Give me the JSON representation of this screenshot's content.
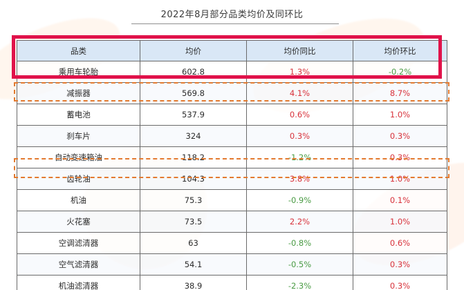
{
  "title": "2022年8月部分品类均价及同环比",
  "colors": {
    "header_bg": "#d9e7f6",
    "positive": "#d8323b",
    "negative": "#4a9b44",
    "highlight_solid": "#e0124a",
    "highlight_dashed": "#e37a2f"
  },
  "chart_data": {
    "type": "table",
    "title": "2022年8月部分品类均价及同环比",
    "columns": [
      "品类",
      "均价",
      "均价同比",
      "均价环比"
    ],
    "rows": [
      {
        "category": "乘用车轮胎",
        "avg_price": "602.8",
        "yoy": "1.3%",
        "mom": "-0.2%"
      },
      {
        "category": "减振器",
        "avg_price": "569.8",
        "yoy": "4.1%",
        "mom": "8.7%"
      },
      {
        "category": "蓄电池",
        "avg_price": "537.9",
        "yoy": "0.6%",
        "mom": "1.0%"
      },
      {
        "category": "刹车片",
        "avg_price": "324",
        "yoy": "0.3%",
        "mom": "0.3%"
      },
      {
        "category": "自动变速箱油",
        "avg_price": "118.2",
        "yoy": "-1.2%",
        "mom": "0.3%"
      },
      {
        "category": "齿轮油",
        "avg_price": "104.3",
        "yoy": "3.8%",
        "mom": "1.0%"
      },
      {
        "category": "机油",
        "avg_price": "75.3",
        "yoy": "-0.9%",
        "mom": "0.1%"
      },
      {
        "category": "火花塞",
        "avg_price": "73.5",
        "yoy": "2.2%",
        "mom": "1.0%"
      },
      {
        "category": "空调滤清器",
        "avg_price": "63",
        "yoy": "-0.8%",
        "mom": "0.6%"
      },
      {
        "category": "空气滤清器",
        "avg_price": "54.1",
        "yoy": "-0.5%",
        "mom": "0.3%"
      },
      {
        "category": "机油滤清器",
        "avg_price": "38.9",
        "yoy": "-2.3%",
        "mom": "0.3%"
      }
    ]
  }
}
